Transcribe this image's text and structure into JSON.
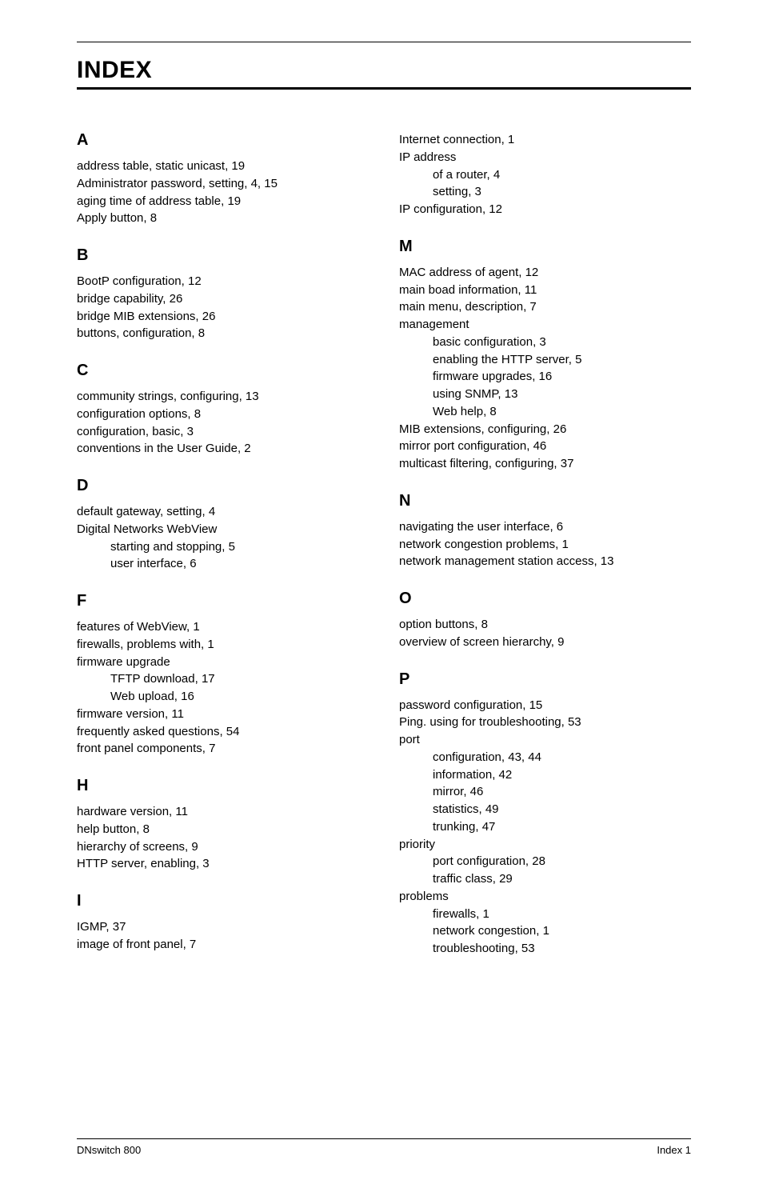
{
  "page": {
    "title": "INDEX",
    "footer_left": "DNswitch 800",
    "footer_right": "Index 1"
  },
  "sections_left": [
    {
      "letter": "A",
      "items": [
        {
          "text": "address table, static unicast, 19"
        },
        {
          "text": "Administrator password, setting, 4, 15"
        },
        {
          "text": "aging time of address table, 19"
        },
        {
          "text": "Apply button, 8"
        }
      ]
    },
    {
      "letter": "B",
      "items": [
        {
          "text": "BootP configuration, 12"
        },
        {
          "text": "bridge capability, 26"
        },
        {
          "text": "bridge MIB extensions, 26"
        },
        {
          "text": "buttons, configuration, 8"
        }
      ]
    },
    {
      "letter": "C",
      "items": [
        {
          "text": "community strings, configuring, 13"
        },
        {
          "text": "configuration options, 8"
        },
        {
          "text": "configuration, basic, 3"
        },
        {
          "text": "conventions in the User Guide, 2"
        }
      ]
    },
    {
      "letter": "D",
      "items": [
        {
          "text": "default gateway, setting, 4"
        },
        {
          "text": "Digital Networks WebView"
        },
        {
          "text": "starting and stopping, 5",
          "sub": true
        },
        {
          "text": "user interface, 6",
          "sub": true
        }
      ]
    },
    {
      "letter": "F",
      "items": [
        {
          "text": "features of WebView, 1"
        },
        {
          "text": "firewalls, problems with, 1"
        },
        {
          "text": "firmware upgrade"
        },
        {
          "text": "TFTP download, 17",
          "sub": true
        },
        {
          "text": "Web upload, 16",
          "sub": true
        },
        {
          "text": "firmware version, 11"
        },
        {
          "text": "frequently asked questions, 54"
        },
        {
          "text": "front panel components, 7"
        }
      ]
    },
    {
      "letter": "H",
      "items": [
        {
          "text": "hardware version, 11"
        },
        {
          "text": "help button, 8"
        },
        {
          "text": "hierarchy of screens, 9"
        },
        {
          "text": "HTTP server, enabling, 3"
        }
      ]
    },
    {
      "letter": "I",
      "items": [
        {
          "text": "IGMP, 37"
        },
        {
          "text": "image of front panel, 7"
        }
      ]
    }
  ],
  "sections_right": [
    {
      "letter": "",
      "items": [
        {
          "text": "Internet connection, 1"
        },
        {
          "text": "IP address"
        },
        {
          "text": "of a router, 4",
          "sub": true
        },
        {
          "text": "setting, 3",
          "sub": true
        },
        {
          "text": "IP configuration, 12"
        }
      ]
    },
    {
      "letter": "M",
      "items": [
        {
          "text": "MAC address of agent, 12"
        },
        {
          "text": "main boad information, 11"
        },
        {
          "text": "main menu, description, 7"
        },
        {
          "text": "management"
        },
        {
          "text": "basic configuration, 3",
          "sub": true
        },
        {
          "text": "enabling the HTTP server, 5",
          "sub": true
        },
        {
          "text": "firmware upgrades, 16",
          "sub": true
        },
        {
          "text": "using SNMP, 13",
          "sub": true
        },
        {
          "text": "Web help, 8",
          "sub": true
        },
        {
          "text": "MIB extensions, configuring, 26"
        },
        {
          "text": "mirror port configuration, 46"
        },
        {
          "text": "multicast filtering, configuring, 37"
        }
      ]
    },
    {
      "letter": "N",
      "items": [
        {
          "text": "navigating the user interface, 6"
        },
        {
          "text": "network congestion problems, 1"
        },
        {
          "text": "network management station access, 13"
        }
      ]
    },
    {
      "letter": "O",
      "items": [
        {
          "text": "option buttons, 8"
        },
        {
          "text": "overview of screen hierarchy, 9"
        }
      ]
    },
    {
      "letter": "P",
      "items": [
        {
          "text": "password configuration, 15"
        },
        {
          "text": "Ping. using for troubleshooting, 53"
        },
        {
          "text": "port"
        },
        {
          "text": "configuration, 43, 44",
          "sub": true
        },
        {
          "text": "information, 42",
          "sub": true
        },
        {
          "text": "mirror, 46",
          "sub": true
        },
        {
          "text": "statistics, 49",
          "sub": true
        },
        {
          "text": "trunking, 47",
          "sub": true
        },
        {
          "text": "priority"
        },
        {
          "text": "port configuration, 28",
          "sub": true
        },
        {
          "text": "traffic class, 29",
          "sub": true
        },
        {
          "text": "problems"
        },
        {
          "text": "firewalls, 1",
          "sub": true
        },
        {
          "text": "network congestion, 1",
          "sub": true
        },
        {
          "text": "troubleshooting, 53",
          "sub": true
        }
      ]
    }
  ]
}
